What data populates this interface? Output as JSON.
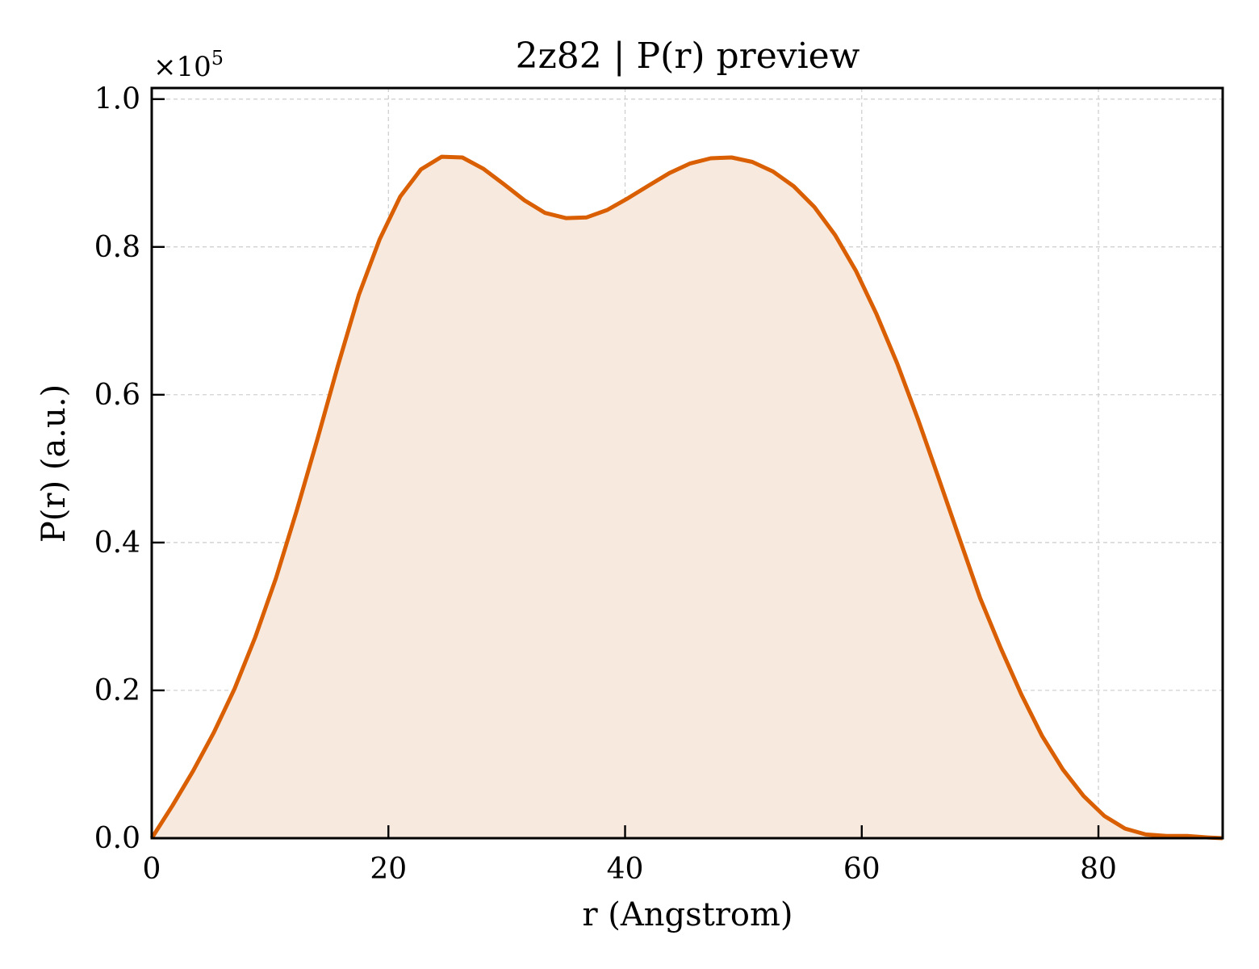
{
  "chart_data": {
    "type": "area",
    "title": "2z82 | P(r) preview",
    "xlabel": "r (Angstrom)",
    "ylabel": "P(r) (a.u.)",
    "y_scale_label": "×10",
    "y_scale_exponent": "5",
    "xlim": [
      0,
      90.5
    ],
    "ylim": [
      0,
      1.015
    ],
    "xticks": [
      0,
      20,
      40,
      60,
      80
    ],
    "xtick_labels": [
      "0",
      "20",
      "40",
      "60",
      "80"
    ],
    "yticks": [
      0.0,
      0.2,
      0.4,
      0.6,
      0.8,
      1.0
    ],
    "ytick_labels": [
      "0.0",
      "0.2",
      "0.4",
      "0.6",
      "0.8",
      "1.0"
    ],
    "grid": true,
    "line_color": "#d95f02",
    "fill_color": "#f8e9de",
    "series": [
      {
        "x": [
          0,
          1.75,
          3.5,
          5.25,
          7.0,
          8.75,
          10.5,
          12.25,
          14.0,
          15.75,
          17.5,
          19.25,
          21.0,
          22.75,
          24.5,
          26.25,
          28.0,
          29.75,
          31.5,
          33.25,
          35.0,
          36.75,
          38.5,
          40.25,
          42.0,
          43.75,
          45.5,
          47.25,
          49.0,
          50.75,
          52.5,
          54.25,
          56.0,
          57.75,
          59.5,
          61.25,
          63.0,
          64.75,
          66.5,
          68.25,
          70.0,
          71.75,
          73.5,
          75.25,
          77.0,
          78.75,
          80.5,
          82.25,
          84.0,
          85.75,
          87.5,
          89.25,
          90.5
        ],
        "y": [
          0.0,
          0.044,
          0.091,
          0.143,
          0.202,
          0.272,
          0.352,
          0.443,
          0.54,
          0.64,
          0.735,
          0.81,
          0.868,
          0.905,
          0.922,
          0.921,
          0.906,
          0.885,
          0.863,
          0.846,
          0.839,
          0.84,
          0.85,
          0.866,
          0.883,
          0.9,
          0.913,
          0.92,
          0.921,
          0.915,
          0.902,
          0.882,
          0.854,
          0.816,
          0.768,
          0.709,
          0.642,
          0.567,
          0.487,
          0.406,
          0.325,
          0.257,
          0.194,
          0.138,
          0.093,
          0.057,
          0.03,
          0.013,
          0.005,
          0.003,
          0.003,
          0.001,
          0.0
        ]
      }
    ]
  }
}
